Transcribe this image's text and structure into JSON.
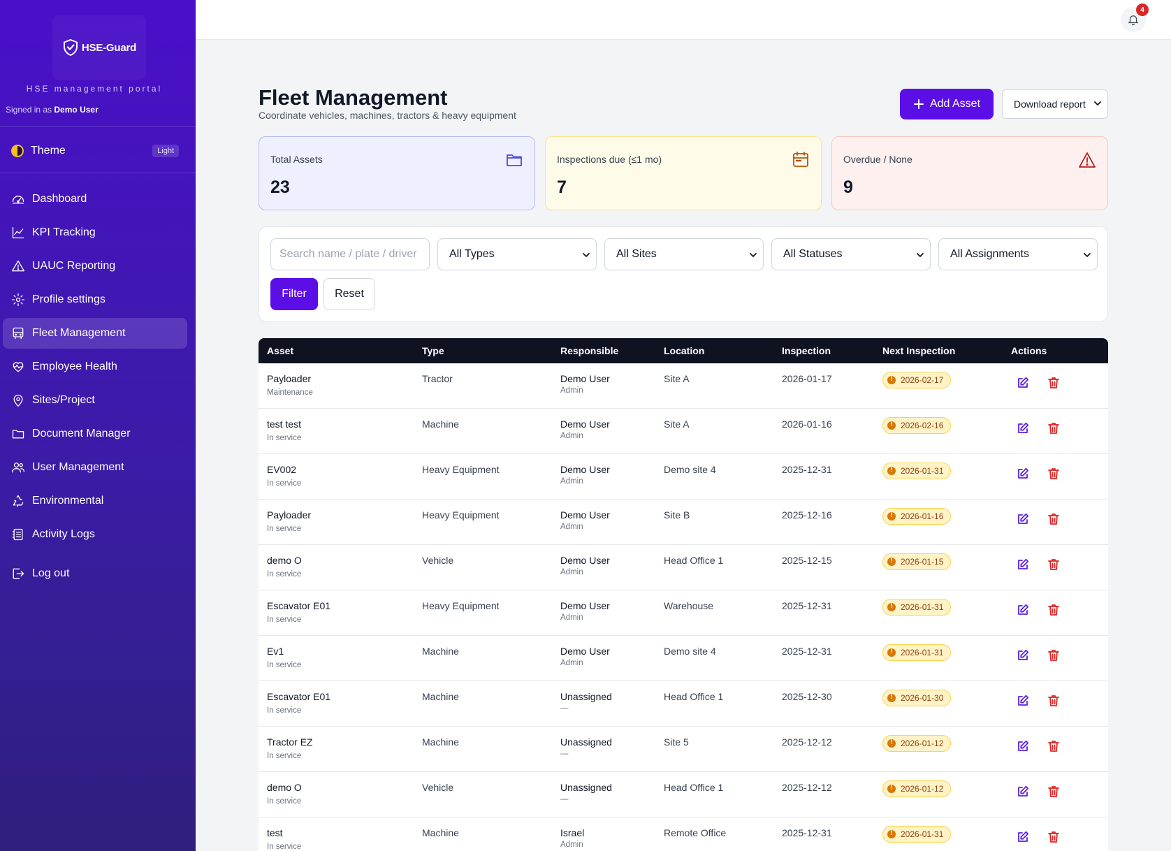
{
  "app": {
    "logo_text": "HSE-Guard",
    "portal_label": "HSE management portal",
    "signed_in_prefix": "Signed in as",
    "signed_in_user": "Demo User"
  },
  "theme": {
    "label": "Theme",
    "mode": "Light"
  },
  "nav": [
    {
      "label": "Dashboard",
      "icon": "dashboard-icon"
    },
    {
      "label": "KPI Tracking",
      "icon": "chart-line-icon"
    },
    {
      "label": "UAUC Reporting",
      "icon": "warning-icon"
    },
    {
      "label": "Profile settings",
      "icon": "gear-icon"
    },
    {
      "label": "Fleet Management",
      "icon": "bus-icon",
      "active": true
    },
    {
      "label": "Employee Health",
      "icon": "heart-pulse-icon"
    },
    {
      "label": "Sites/Project",
      "icon": "map-pin-icon"
    },
    {
      "label": "Document Manager",
      "icon": "folder-icon"
    },
    {
      "label": "User Management",
      "icon": "users-icon"
    },
    {
      "label": "Environmental",
      "icon": "recycle-icon"
    },
    {
      "label": "Activity Logs",
      "icon": "log-icon"
    }
  ],
  "logout_label": "Log out",
  "notifications": {
    "count": "4"
  },
  "header": {
    "title": "Fleet Management",
    "subtitle": "Coordinate vehicles, machines, tractors & heavy equipment",
    "add_label": "Add Asset",
    "download_label": "Download report"
  },
  "stats": [
    {
      "label": "Total Assets",
      "value": "23",
      "icon": "folder-icon"
    },
    {
      "label": "Inspections due (≤1 mo)",
      "value": "7",
      "icon": "calendar-icon"
    },
    {
      "label": "Overdue / None",
      "value": "9",
      "icon": "alert-triangle-icon"
    }
  ],
  "filters": {
    "search_placeholder": "Search name / plate / driver",
    "type": "All Types",
    "site": "All Sites",
    "status": "All Statuses",
    "assignment": "All Assignments",
    "filter_label": "Filter",
    "reset_label": "Reset"
  },
  "table": {
    "columns": [
      "Asset",
      "Type",
      "Responsible",
      "Location",
      "Inspection",
      "Next Inspection",
      "Actions"
    ],
    "rows": [
      {
        "asset": "Payloader",
        "status": "Maintenance",
        "type": "Tractor",
        "responsible": "Demo User",
        "role": "Admin",
        "location": "Site A",
        "inspection": "2026-01-17",
        "next": "2026-02-17"
      },
      {
        "asset": "test test",
        "status": "In service",
        "type": "Machine",
        "responsible": "Demo User",
        "role": "Admin",
        "location": "Site A",
        "inspection": "2026-01-16",
        "next": "2026-02-16"
      },
      {
        "asset": "EV002",
        "status": "In service",
        "type": "Heavy Equipment",
        "responsible": "Demo User",
        "role": "Admin",
        "location": "Demo site 4",
        "inspection": "2025-12-31",
        "next": "2026-01-31"
      },
      {
        "asset": "Payloader",
        "status": "In service",
        "type": "Heavy Equipment",
        "responsible": "Demo User",
        "role": "Admin",
        "location": "Site B",
        "inspection": "2025-12-16",
        "next": "2026-01-16"
      },
      {
        "asset": "demo O",
        "status": "In service",
        "type": "Vehicle",
        "responsible": "Demo User",
        "role": "Admin",
        "location": "Head Office 1",
        "inspection": "2025-12-15",
        "next": "2026-01-15"
      },
      {
        "asset": "Escavator E01",
        "status": "In service",
        "type": "Heavy Equipment",
        "responsible": "Demo User",
        "role": "Admin",
        "location": "Warehouse",
        "inspection": "2025-12-31",
        "next": "2026-01-31"
      },
      {
        "asset": "Ev1",
        "status": "In service",
        "type": "Machine",
        "responsible": "Demo User",
        "role": "Admin",
        "location": "Demo site 4",
        "inspection": "2025-12-31",
        "next": "2026-01-31"
      },
      {
        "asset": "Escavator E01",
        "status": "In service",
        "type": "Machine",
        "responsible": "Unassigned",
        "role": "—",
        "location": "Head Office 1",
        "inspection": "2025-12-30",
        "next": "2026-01-30"
      },
      {
        "asset": "Tractor EZ",
        "status": "In service",
        "type": "Machine",
        "responsible": "Unassigned",
        "role": "—",
        "location": "Site 5",
        "inspection": "2025-12-12",
        "next": "2026-01-12"
      },
      {
        "asset": "demo O",
        "status": "In service",
        "type": "Vehicle",
        "responsible": "Unassigned",
        "role": "—",
        "location": "Head Office 1",
        "inspection": "2025-12-12",
        "next": "2026-01-12"
      },
      {
        "asset": "test",
        "status": "In service",
        "type": "Machine",
        "responsible": "Israel",
        "role": "Admin",
        "location": "Remote Office",
        "inspection": "2025-12-31",
        "next": "2026-01-31"
      }
    ]
  },
  "colors": {
    "primary": "#5b0fe6",
    "sidebar": "#4a0fc9",
    "danger": "#dc2626",
    "warning_badge": "#fef3c7"
  }
}
